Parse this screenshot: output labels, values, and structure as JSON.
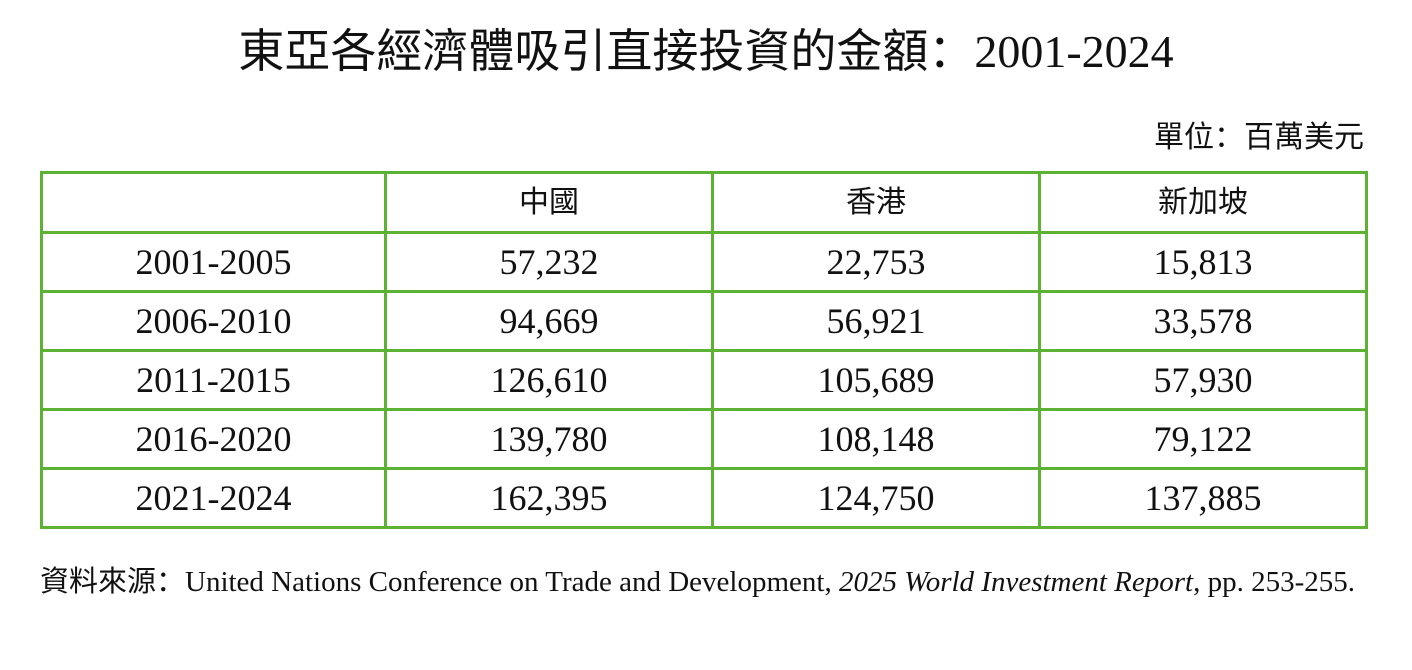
{
  "title": "東亞各經濟體吸引直接投資的金額：2001-2024",
  "unit": "單位：百萬美元",
  "table": {
    "columns": [
      "",
      "中國",
      "香港",
      "新加坡"
    ],
    "rows": [
      {
        "period": "2001-2005",
        "china": "57,232",
        "hongkong": "22,753",
        "singapore": "15,813"
      },
      {
        "period": "2006-2010",
        "china": "94,669",
        "hongkong": "56,921",
        "singapore": "33,578"
      },
      {
        "period": "2011-2015",
        "china": "126,610",
        "hongkong": "105,689",
        "singapore": "57,930"
      },
      {
        "period": "2016-2020",
        "china": "139,780",
        "hongkong": "108,148",
        "singapore": "79,122"
      },
      {
        "period": "2021-2024",
        "china": "162,395",
        "hongkong": "124,750",
        "singapore": "137,885"
      }
    ]
  },
  "source": {
    "prefix": "資料來源：United Nations Conference on Trade and Development, ",
    "publication": "2025 World Investment Report",
    "suffix": ", pp. 253-255."
  },
  "colors": {
    "table_border": "#5cb233",
    "text": "#111111"
  }
}
